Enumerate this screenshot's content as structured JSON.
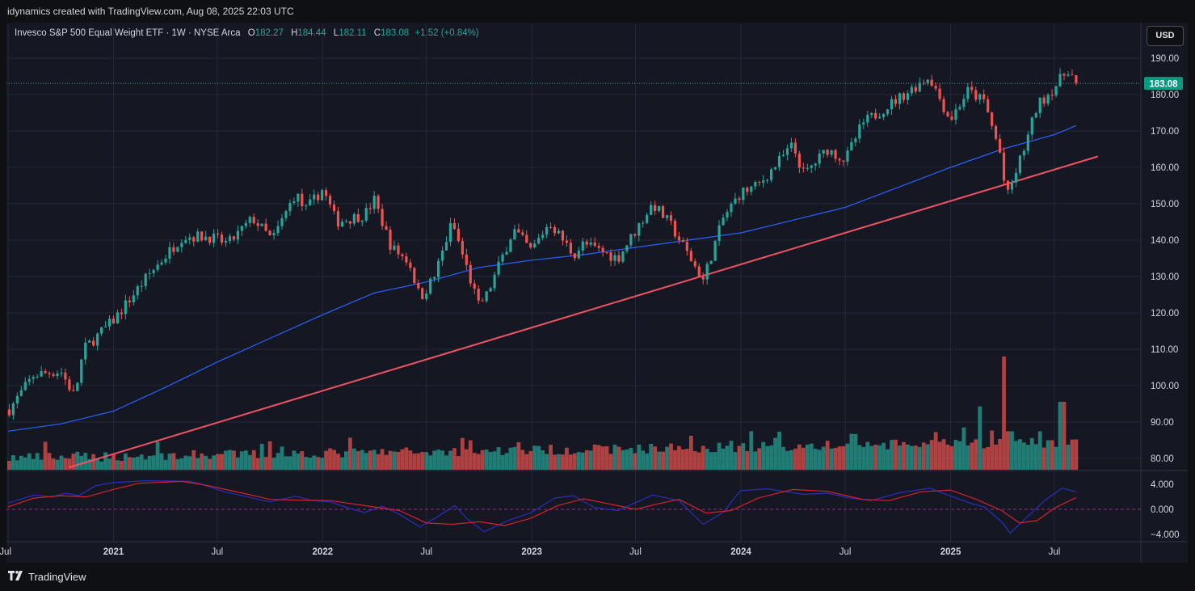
{
  "header": {
    "attribution": "idynamics created with TradingView.com, Aug 08, 2025 22:03 UTC"
  },
  "legend": {
    "symbol": "Invesco S&P 500 Equal Weight ETF · 1W · NYSE Arca",
    "o_label": "O",
    "o_value": "182.27",
    "h_label": "H",
    "h_value": "184.44",
    "l_label": "L",
    "l_value": "182.11",
    "c_label": "C",
    "c_value": "183.08",
    "change": "+1.52 (+0.84%)"
  },
  "currency_button": "USD",
  "last_price_label": "183.08",
  "footer": {
    "brand": "TradingView",
    "logo_icon": "tradingview-logo-icon"
  },
  "colors": {
    "up": "#26a69a",
    "down": "#ef5350",
    "ma": "#2962ff",
    "trendline": "#f05363",
    "osc_fast": "#2a2ebf",
    "osc_slow": "#d8202c"
  },
  "chart_data": {
    "type": "candlestick",
    "interval": "1W",
    "y_axis": {
      "range": [
        77,
        192
      ],
      "ticks": [
        "190.00",
        "180.00",
        "170.00",
        "160.00",
        "150.00",
        "140.00",
        "130.00",
        "120.00",
        "110.00",
        "100.00",
        "90.00",
        "80.00"
      ]
    },
    "x_axis": {
      "ticks": [
        "Jul",
        "2021",
        "Jul",
        "2022",
        "Jul",
        "2023",
        "Jul",
        "2024",
        "Jul",
        "2025",
        "Jul"
      ]
    },
    "price_path": [
      [
        "2020-07-01",
        93
      ],
      [
        "2020-08-15",
        103
      ],
      [
        "2020-10-01",
        104
      ],
      [
        "2020-10-25",
        97
      ],
      [
        "2020-11-10",
        110
      ],
      [
        "2021-01-01",
        118
      ],
      [
        "2021-03-01",
        130
      ],
      [
        "2021-05-01",
        141
      ],
      [
        "2021-06-15",
        141
      ],
      [
        "2021-07-20",
        139
      ],
      [
        "2021-09-01",
        146
      ],
      [
        "2021-10-05",
        140
      ],
      [
        "2021-11-15",
        153
      ],
      [
        "2021-12-01",
        148
      ],
      [
        "2022-01-01",
        154
      ],
      [
        "2022-01-25",
        145
      ],
      [
        "2022-03-15",
        147
      ],
      [
        "2022-04-01",
        151
      ],
      [
        "2022-05-01",
        138
      ],
      [
        "2022-06-01",
        134
      ],
      [
        "2022-06-20",
        124
      ],
      [
        "2022-07-15",
        130
      ],
      [
        "2022-08-15",
        145
      ],
      [
        "2022-09-30",
        122
      ],
      [
        "2022-10-15",
        125
      ],
      [
        "2022-11-30",
        143
      ],
      [
        "2022-12-31",
        137
      ],
      [
        "2023-02-01",
        145
      ],
      [
        "2023-03-15",
        136
      ],
      [
        "2023-04-01",
        139
      ],
      [
        "2023-05-31",
        135
      ],
      [
        "2023-07-31",
        150
      ],
      [
        "2023-09-01",
        144
      ],
      [
        "2023-10-27",
        129
      ],
      [
        "2023-12-01",
        146
      ],
      [
        "2023-12-31",
        153
      ],
      [
        "2024-01-31",
        155
      ],
      [
        "2024-03-31",
        166
      ],
      [
        "2024-04-20",
        158
      ],
      [
        "2024-05-31",
        165
      ],
      [
        "2024-07-01",
        162
      ],
      [
        "2024-07-31",
        172
      ],
      [
        "2024-11-25",
        185
      ],
      [
        "2024-12-31",
        173
      ],
      [
        "2025-01-31",
        181
      ],
      [
        "2025-03-01",
        178
      ],
      [
        "2025-03-30",
        163
      ],
      [
        "2025-04-08",
        151
      ],
      [
        "2025-05-15",
        168
      ],
      [
        "2025-06-01",
        177
      ],
      [
        "2025-07-01",
        182
      ],
      [
        "2025-07-25",
        187
      ],
      [
        "2025-08-08",
        183.08
      ]
    ],
    "moving_average": [
      [
        "2020-07-01",
        87.5
      ],
      [
        "2020-10-01",
        89.5
      ],
      [
        "2021-01-01",
        93
      ],
      [
        "2021-04-01",
        99.5
      ],
      [
        "2021-07-01",
        106.5
      ],
      [
        "2021-10-01",
        113
      ],
      [
        "2022-01-01",
        119.5
      ],
      [
        "2022-04-01",
        125.5
      ],
      [
        "2022-07-01",
        128.5
      ],
      [
        "2022-10-01",
        132.5
      ],
      [
        "2023-01-01",
        134.5
      ],
      [
        "2023-04-01",
        136
      ],
      [
        "2023-07-01",
        138
      ],
      [
        "2023-10-01",
        140
      ],
      [
        "2024-01-01",
        142
      ],
      [
        "2024-04-01",
        145.5
      ],
      [
        "2024-07-01",
        149
      ],
      [
        "2024-10-01",
        154.5
      ],
      [
        "2025-01-01",
        160
      ],
      [
        "2025-04-01",
        165
      ],
      [
        "2025-07-01",
        169
      ],
      [
        "2025-08-08",
        171.5
      ]
    ],
    "trendline": [
      [
        "2020-10-15",
        77.5
      ],
      [
        "2023-11-01",
        130
      ],
      [
        "2025-09-15",
        163
      ]
    ],
    "volume_axis_max": 100,
    "volume_spikes": [
      [
        "2025-02-20",
        56
      ],
      [
        "2025-04-07",
        100
      ],
      [
        "2025-04-14",
        34
      ],
      [
        "2025-07-14",
        60
      ]
    ],
    "oscillator": {
      "ticks": [
        "4.000",
        "0.000",
        "−4.000"
      ],
      "range": [
        -5.2,
        5.2
      ],
      "fast": [
        [
          "2020-07-01",
          1.0
        ],
        [
          "2020-08-15",
          2.3
        ],
        [
          "2020-09-15",
          2.0
        ],
        [
          "2020-10-10",
          2.6
        ],
        [
          "2020-11-01",
          2.2
        ],
        [
          "2020-12-01",
          3.8
        ],
        [
          "2021-01-01",
          4.3
        ],
        [
          "2021-03-01",
          4.6
        ],
        [
          "2021-05-15",
          4.5
        ],
        [
          "2021-06-01",
          4.1
        ],
        [
          "2021-07-15",
          2.8
        ],
        [
          "2021-09-01",
          1.8
        ],
        [
          "2021-10-01",
          1.2
        ],
        [
          "2021-11-15",
          2.1
        ],
        [
          "2021-12-15",
          1.4
        ],
        [
          "2022-01-15",
          1.2
        ],
        [
          "2022-02-15",
          0.2
        ],
        [
          "2022-03-15",
          -0.5
        ],
        [
          "2022-04-15",
          0.5
        ],
        [
          "2022-05-15",
          -0.8
        ],
        [
          "2022-06-20",
          -2.8
        ],
        [
          "2022-07-20",
          -1.2
        ],
        [
          "2022-08-20",
          0.6
        ],
        [
          "2022-09-10",
          -1.5
        ],
        [
          "2022-10-10",
          -3.6
        ],
        [
          "2022-11-20",
          -1.8
        ],
        [
          "2022-12-31",
          -0.5
        ],
        [
          "2023-02-10",
          1.8
        ],
        [
          "2023-03-15",
          2.2
        ],
        [
          "2023-04-20",
          0.3
        ],
        [
          "2023-05-31",
          -0.2
        ],
        [
          "2023-07-31",
          2.3
        ],
        [
          "2023-09-15",
          1.4
        ],
        [
          "2023-10-27",
          -2.4
        ],
        [
          "2023-12-01",
          -0.5
        ],
        [
          "2023-12-31",
          3.0
        ],
        [
          "2024-02-15",
          3.3
        ],
        [
          "2024-04-20",
          2.4
        ],
        [
          "2024-05-31",
          2.6
        ],
        [
          "2024-07-10",
          1.8
        ],
        [
          "2024-08-15",
          1.4
        ],
        [
          "2024-10-01",
          2.6
        ],
        [
          "2024-11-25",
          3.4
        ],
        [
          "2025-01-05",
          2.0
        ],
        [
          "2025-02-10",
          0.8
        ],
        [
          "2025-03-01",
          0.4
        ],
        [
          "2025-03-31",
          -2.0
        ],
        [
          "2025-04-15",
          -3.8
        ],
        [
          "2025-05-15",
          -1.2
        ],
        [
          "2025-06-15",
          1.5
        ],
        [
          "2025-07-15",
          3.4
        ],
        [
          "2025-08-08",
          2.8
        ]
      ],
      "slow": [
        [
          "2020-07-01",
          0.4
        ],
        [
          "2020-08-15",
          1.8
        ],
        [
          "2020-10-01",
          2.2
        ],
        [
          "2020-11-15",
          2.0
        ],
        [
          "2020-12-31",
          3.2
        ],
        [
          "2021-02-15",
          4.2
        ],
        [
          "2021-05-01",
          4.5
        ],
        [
          "2021-06-15",
          3.8
        ],
        [
          "2021-08-15",
          2.6
        ],
        [
          "2021-10-01",
          1.6
        ],
        [
          "2021-11-15",
          1.5
        ],
        [
          "2022-01-15",
          1.4
        ],
        [
          "2022-03-15",
          0.6
        ],
        [
          "2022-05-15",
          -0.2
        ],
        [
          "2022-07-01",
          -2.2
        ],
        [
          "2022-08-15",
          -2.4
        ],
        [
          "2022-10-01",
          -2.0
        ],
        [
          "2022-11-15",
          -2.6
        ],
        [
          "2022-12-31",
          -1.4
        ],
        [
          "2023-02-15",
          0.6
        ],
        [
          "2023-04-01",
          1.7
        ],
        [
          "2023-05-31",
          0.6
        ],
        [
          "2023-07-01",
          0.0
        ],
        [
          "2023-08-15",
          1.0
        ],
        [
          "2023-09-15",
          1.6
        ],
        [
          "2023-11-01",
          -0.6
        ],
        [
          "2023-12-15",
          -0.2
        ],
        [
          "2024-01-31",
          1.8
        ],
        [
          "2024-03-31",
          3.2
        ],
        [
          "2024-05-31",
          2.9
        ],
        [
          "2024-07-31",
          1.6
        ],
        [
          "2024-09-15",
          1.4
        ],
        [
          "2024-11-10",
          2.8
        ],
        [
          "2024-12-31",
          3.1
        ],
        [
          "2025-02-15",
          1.6
        ],
        [
          "2025-03-31",
          -0.2
        ],
        [
          "2025-05-01",
          -2.2
        ],
        [
          "2025-06-01",
          -1.8
        ],
        [
          "2025-07-01",
          0.2
        ],
        [
          "2025-08-08",
          1.9
        ]
      ]
    }
  }
}
